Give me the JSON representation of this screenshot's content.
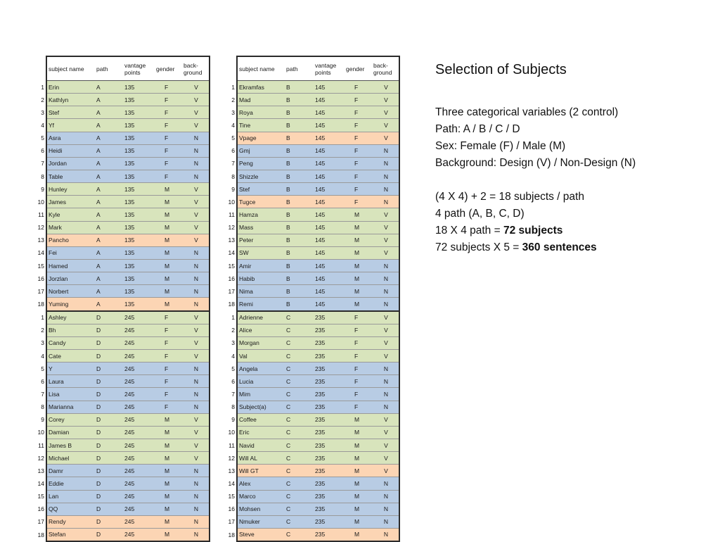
{
  "title": "Selection of Subjects",
  "headers": {
    "name": "subject name",
    "path": "path",
    "vantage_1": "vantage",
    "vantage_2": "points",
    "gender": "gender",
    "background_1": "back-",
    "background_2": "ground"
  },
  "colors": {
    "design_female": "#d8e4bc",
    "nondesign": "#b8cce4",
    "highlight": "#fcd5b4"
  },
  "left_table": [
    {
      "n": "1",
      "name": "Erin",
      "path": "A",
      "vp": "135",
      "g": "F",
      "b": "V",
      "c": "green"
    },
    {
      "n": "2",
      "name": "Kathlyn",
      "path": "A",
      "vp": "135",
      "g": "F",
      "b": "V",
      "c": "green"
    },
    {
      "n": "3",
      "name": "Stef",
      "path": "A",
      "vp": "135",
      "g": "F",
      "b": "V",
      "c": "green"
    },
    {
      "n": "4",
      "name": "Yf",
      "path": "A",
      "vp": "135",
      "g": "F",
      "b": "V",
      "c": "green"
    },
    {
      "n": "5",
      "name": "Asra",
      "path": "A",
      "vp": "135",
      "g": "F",
      "b": "N",
      "c": "blue"
    },
    {
      "n": "6",
      "name": "Heidi",
      "path": "A",
      "vp": "135",
      "g": "F",
      "b": "N",
      "c": "blue"
    },
    {
      "n": "7",
      "name": "Jordan",
      "path": "A",
      "vp": "135",
      "g": "F",
      "b": "N",
      "c": "blue"
    },
    {
      "n": "8",
      "name": "Table",
      "path": "A",
      "vp": "135",
      "g": "F",
      "b": "N",
      "c": "blue"
    },
    {
      "n": "9",
      "name": "Hunley",
      "path": "A",
      "vp": "135",
      "g": "M",
      "b": "V",
      "c": "green"
    },
    {
      "n": "10",
      "name": "James",
      "path": "A",
      "vp": "135",
      "g": "M",
      "b": "V",
      "c": "green"
    },
    {
      "n": "11",
      "name": "Kyle",
      "path": "A",
      "vp": "135",
      "g": "M",
      "b": "V",
      "c": "green"
    },
    {
      "n": "12",
      "name": "Mark",
      "path": "A",
      "vp": "135",
      "g": "M",
      "b": "V",
      "c": "green"
    },
    {
      "n": "13",
      "name": "Pancho",
      "path": "A",
      "vp": "135",
      "g": "M",
      "b": "V",
      "c": "orange"
    },
    {
      "n": "14",
      "name": "Fei",
      "path": "A",
      "vp": "135",
      "g": "M",
      "b": "N",
      "c": "blue"
    },
    {
      "n": "15",
      "name": "Hamed",
      "path": "A",
      "vp": "135",
      "g": "M",
      "b": "N",
      "c": "blue"
    },
    {
      "n": "16",
      "name": "Jorzlan",
      "path": "A",
      "vp": "135",
      "g": "M",
      "b": "N",
      "c": "blue"
    },
    {
      "n": "17",
      "name": "Norbert",
      "path": "A",
      "vp": "135",
      "g": "M",
      "b": "N",
      "c": "blue"
    },
    {
      "n": "18",
      "name": "Yuming",
      "path": "A",
      "vp": "135",
      "g": "M",
      "b": "N",
      "c": "orange",
      "end": true
    },
    {
      "n": "1",
      "name": "Ashley",
      "path": "D",
      "vp": "245",
      "g": "F",
      "b": "V",
      "c": "green"
    },
    {
      "n": "2",
      "name": "Bh",
      "path": "D",
      "vp": "245",
      "g": "F",
      "b": "V",
      "c": "green"
    },
    {
      "n": "3",
      "name": "Candy",
      "path": "D",
      "vp": "245",
      "g": "F",
      "b": "V",
      "c": "green"
    },
    {
      "n": "4",
      "name": "Cate",
      "path": "D",
      "vp": "245",
      "g": "F",
      "b": "V",
      "c": "green"
    },
    {
      "n": "5",
      "name": "Y",
      "path": "D",
      "vp": "245",
      "g": "F",
      "b": "N",
      "c": "blue"
    },
    {
      "n": "6",
      "name": "Laura",
      "path": "D",
      "vp": "245",
      "g": "F",
      "b": "N",
      "c": "blue"
    },
    {
      "n": "7",
      "name": "Lisa",
      "path": "D",
      "vp": "245",
      "g": "F",
      "b": "N",
      "c": "blue"
    },
    {
      "n": "8",
      "name": "Marianna",
      "path": "D",
      "vp": "245",
      "g": "F",
      "b": "N",
      "c": "blue"
    },
    {
      "n": "9",
      "name": "Corey",
      "path": "D",
      "vp": "245",
      "g": "M",
      "b": "V",
      "c": "green"
    },
    {
      "n": "10",
      "name": "Damian",
      "path": "D",
      "vp": "245",
      "g": "M",
      "b": "V",
      "c": "green"
    },
    {
      "n": "11",
      "name": "James B",
      "path": "D",
      "vp": "245",
      "g": "M",
      "b": "V",
      "c": "green"
    },
    {
      "n": "12",
      "name": "Michael",
      "path": "D",
      "vp": "245",
      "g": "M",
      "b": "V",
      "c": "green"
    },
    {
      "n": "13",
      "name": "Damr",
      "path": "D",
      "vp": "245",
      "g": "M",
      "b": "N",
      "c": "blue"
    },
    {
      "n": "14",
      "name": "Eddie",
      "path": "D",
      "vp": "245",
      "g": "M",
      "b": "N",
      "c": "blue"
    },
    {
      "n": "15",
      "name": "Lan",
      "path": "D",
      "vp": "245",
      "g": "M",
      "b": "N",
      "c": "blue"
    },
    {
      "n": "16",
      "name": "QQ",
      "path": "D",
      "vp": "245",
      "g": "M",
      "b": "N",
      "c": "blue"
    },
    {
      "n": "17",
      "name": "Rendy",
      "path": "D",
      "vp": "245",
      "g": "M",
      "b": "N",
      "c": "orange"
    },
    {
      "n": "18",
      "name": "Stefan",
      "path": "D",
      "vp": "245",
      "g": "M",
      "b": "N",
      "c": "orange",
      "end": true
    }
  ],
  "right_table": [
    {
      "n": "1",
      "name": "Ekramfas",
      "path": "B",
      "vp": "145",
      "g": "F",
      "b": "V",
      "c": "green"
    },
    {
      "n": "2",
      "name": "Mad",
      "path": "B",
      "vp": "145",
      "g": "F",
      "b": "V",
      "c": "green"
    },
    {
      "n": "3",
      "name": "Roya",
      "path": "B",
      "vp": "145",
      "g": "F",
      "b": "V",
      "c": "green"
    },
    {
      "n": "4",
      "name": "Tine",
      "path": "B",
      "vp": "145",
      "g": "F",
      "b": "V",
      "c": "green"
    },
    {
      "n": "5",
      "name": "Vpage",
      "path": "B",
      "vp": "145",
      "g": "F",
      "b": "V",
      "c": "orange"
    },
    {
      "n": "6",
      "name": "Gmj",
      "path": "B",
      "vp": "145",
      "g": "F",
      "b": "N",
      "c": "blue"
    },
    {
      "n": "7",
      "name": "Peng",
      "path": "B",
      "vp": "145",
      "g": "F",
      "b": "N",
      "c": "blue"
    },
    {
      "n": "8",
      "name": "Shizzle",
      "path": "B",
      "vp": "145",
      "g": "F",
      "b": "N",
      "c": "blue"
    },
    {
      "n": "9",
      "name": "Stef",
      "path": "B",
      "vp": "145",
      "g": "F",
      "b": "N",
      "c": "blue"
    },
    {
      "n": "10",
      "name": "Tugce",
      "path": "B",
      "vp": "145",
      "g": "F",
      "b": "N",
      "c": "orange"
    },
    {
      "n": "11",
      "name": "Hamza",
      "path": "B",
      "vp": "145",
      "g": "M",
      "b": "V",
      "c": "green"
    },
    {
      "n": "12",
      "name": "Mass",
      "path": "B",
      "vp": "145",
      "g": "M",
      "b": "V",
      "c": "green"
    },
    {
      "n": "13",
      "name": "Peter",
      "path": "B",
      "vp": "145",
      "g": "M",
      "b": "V",
      "c": "green"
    },
    {
      "n": "14",
      "name": "SW",
      "path": "B",
      "vp": "145",
      "g": "M",
      "b": "V",
      "c": "green"
    },
    {
      "n": "15",
      "name": "Amir",
      "path": "B",
      "vp": "145",
      "g": "M",
      "b": "N",
      "c": "blue"
    },
    {
      "n": "16",
      "name": "Habib",
      "path": "B",
      "vp": "145",
      "g": "M",
      "b": "N",
      "c": "blue"
    },
    {
      "n": "17",
      "name": "Nima",
      "path": "B",
      "vp": "145",
      "g": "M",
      "b": "N",
      "c": "blue"
    },
    {
      "n": "18",
      "name": "Remi",
      "path": "B",
      "vp": "145",
      "g": "M",
      "b": "N",
      "c": "blue",
      "end": true
    },
    {
      "n": "1",
      "name": "Adrienne",
      "path": "C",
      "vp": "235",
      "g": "F",
      "b": "V",
      "c": "green"
    },
    {
      "n": "2",
      "name": "Alice",
      "path": "C",
      "vp": "235",
      "g": "F",
      "b": "V",
      "c": "green"
    },
    {
      "n": "3",
      "name": "Morgan",
      "path": "C",
      "vp": "235",
      "g": "F",
      "b": "V",
      "c": "green"
    },
    {
      "n": "4",
      "name": "Val",
      "path": "C",
      "vp": "235",
      "g": "F",
      "b": "V",
      "c": "green"
    },
    {
      "n": "5",
      "name": "Angela",
      "path": "C",
      "vp": "235",
      "g": "F",
      "b": "N",
      "c": "blue"
    },
    {
      "n": "6",
      "name": "Lucia",
      "path": "C",
      "vp": "235",
      "g": "F",
      "b": "N",
      "c": "blue"
    },
    {
      "n": "7",
      "name": "Mim",
      "path": "C",
      "vp": "235",
      "g": "F",
      "b": "N",
      "c": "blue"
    },
    {
      "n": "8",
      "name": "Subject(a)",
      "path": "C",
      "vp": "235",
      "g": "F",
      "b": "N",
      "c": "blue"
    },
    {
      "n": "9",
      "name": "Coffee",
      "path": "C",
      "vp": "235",
      "g": "M",
      "b": "V",
      "c": "green"
    },
    {
      "n": "10",
      "name": "Eric",
      "path": "C",
      "vp": "235",
      "g": "M",
      "b": "V",
      "c": "green"
    },
    {
      "n": "11",
      "name": "Navid",
      "path": "C",
      "vp": "235",
      "g": "M",
      "b": "V",
      "c": "green"
    },
    {
      "n": "12",
      "name": "Will AL",
      "path": "C",
      "vp": "235",
      "g": "M",
      "b": "V",
      "c": "green"
    },
    {
      "n": "13",
      "name": "Will GT",
      "path": "C",
      "vp": "235",
      "g": "M",
      "b": "V",
      "c": "orange"
    },
    {
      "n": "14",
      "name": "Alex",
      "path": "C",
      "vp": "235",
      "g": "M",
      "b": "N",
      "c": "blue"
    },
    {
      "n": "15",
      "name": "Marco",
      "path": "C",
      "vp": "235",
      "g": "M",
      "b": "N",
      "c": "blue"
    },
    {
      "n": "16",
      "name": "Mohsen",
      "path": "C",
      "vp": "235",
      "g": "M",
      "b": "N",
      "c": "blue"
    },
    {
      "n": "17",
      "name": "Nmuker",
      "path": "C",
      "vp": "235",
      "g": "M",
      "b": "N",
      "c": "blue"
    },
    {
      "n": "18",
      "name": "Steve",
      "path": "C",
      "vp": "235",
      "g": "M",
      "b": "N",
      "c": "orange",
      "end": true
    }
  ],
  "text": {
    "line1": "Three categorical variables (2 control)",
    "line2": "Path: A / B / C / D",
    "line3": "Sex: Female (F) / Male (M)",
    "line4": "Background: Design (V) / Non-Design (N)",
    "line5": "(4 X 4) + 2 = 18 subjects / path",
    "line6": "4 path (A, B, C, D)",
    "line7_prefix": "18 X 4 path = ",
    "line7_bold": "72 subjects",
    "line8_prefix": "72 subjects X 5 = ",
    "line8_bold": "360 sentences"
  }
}
